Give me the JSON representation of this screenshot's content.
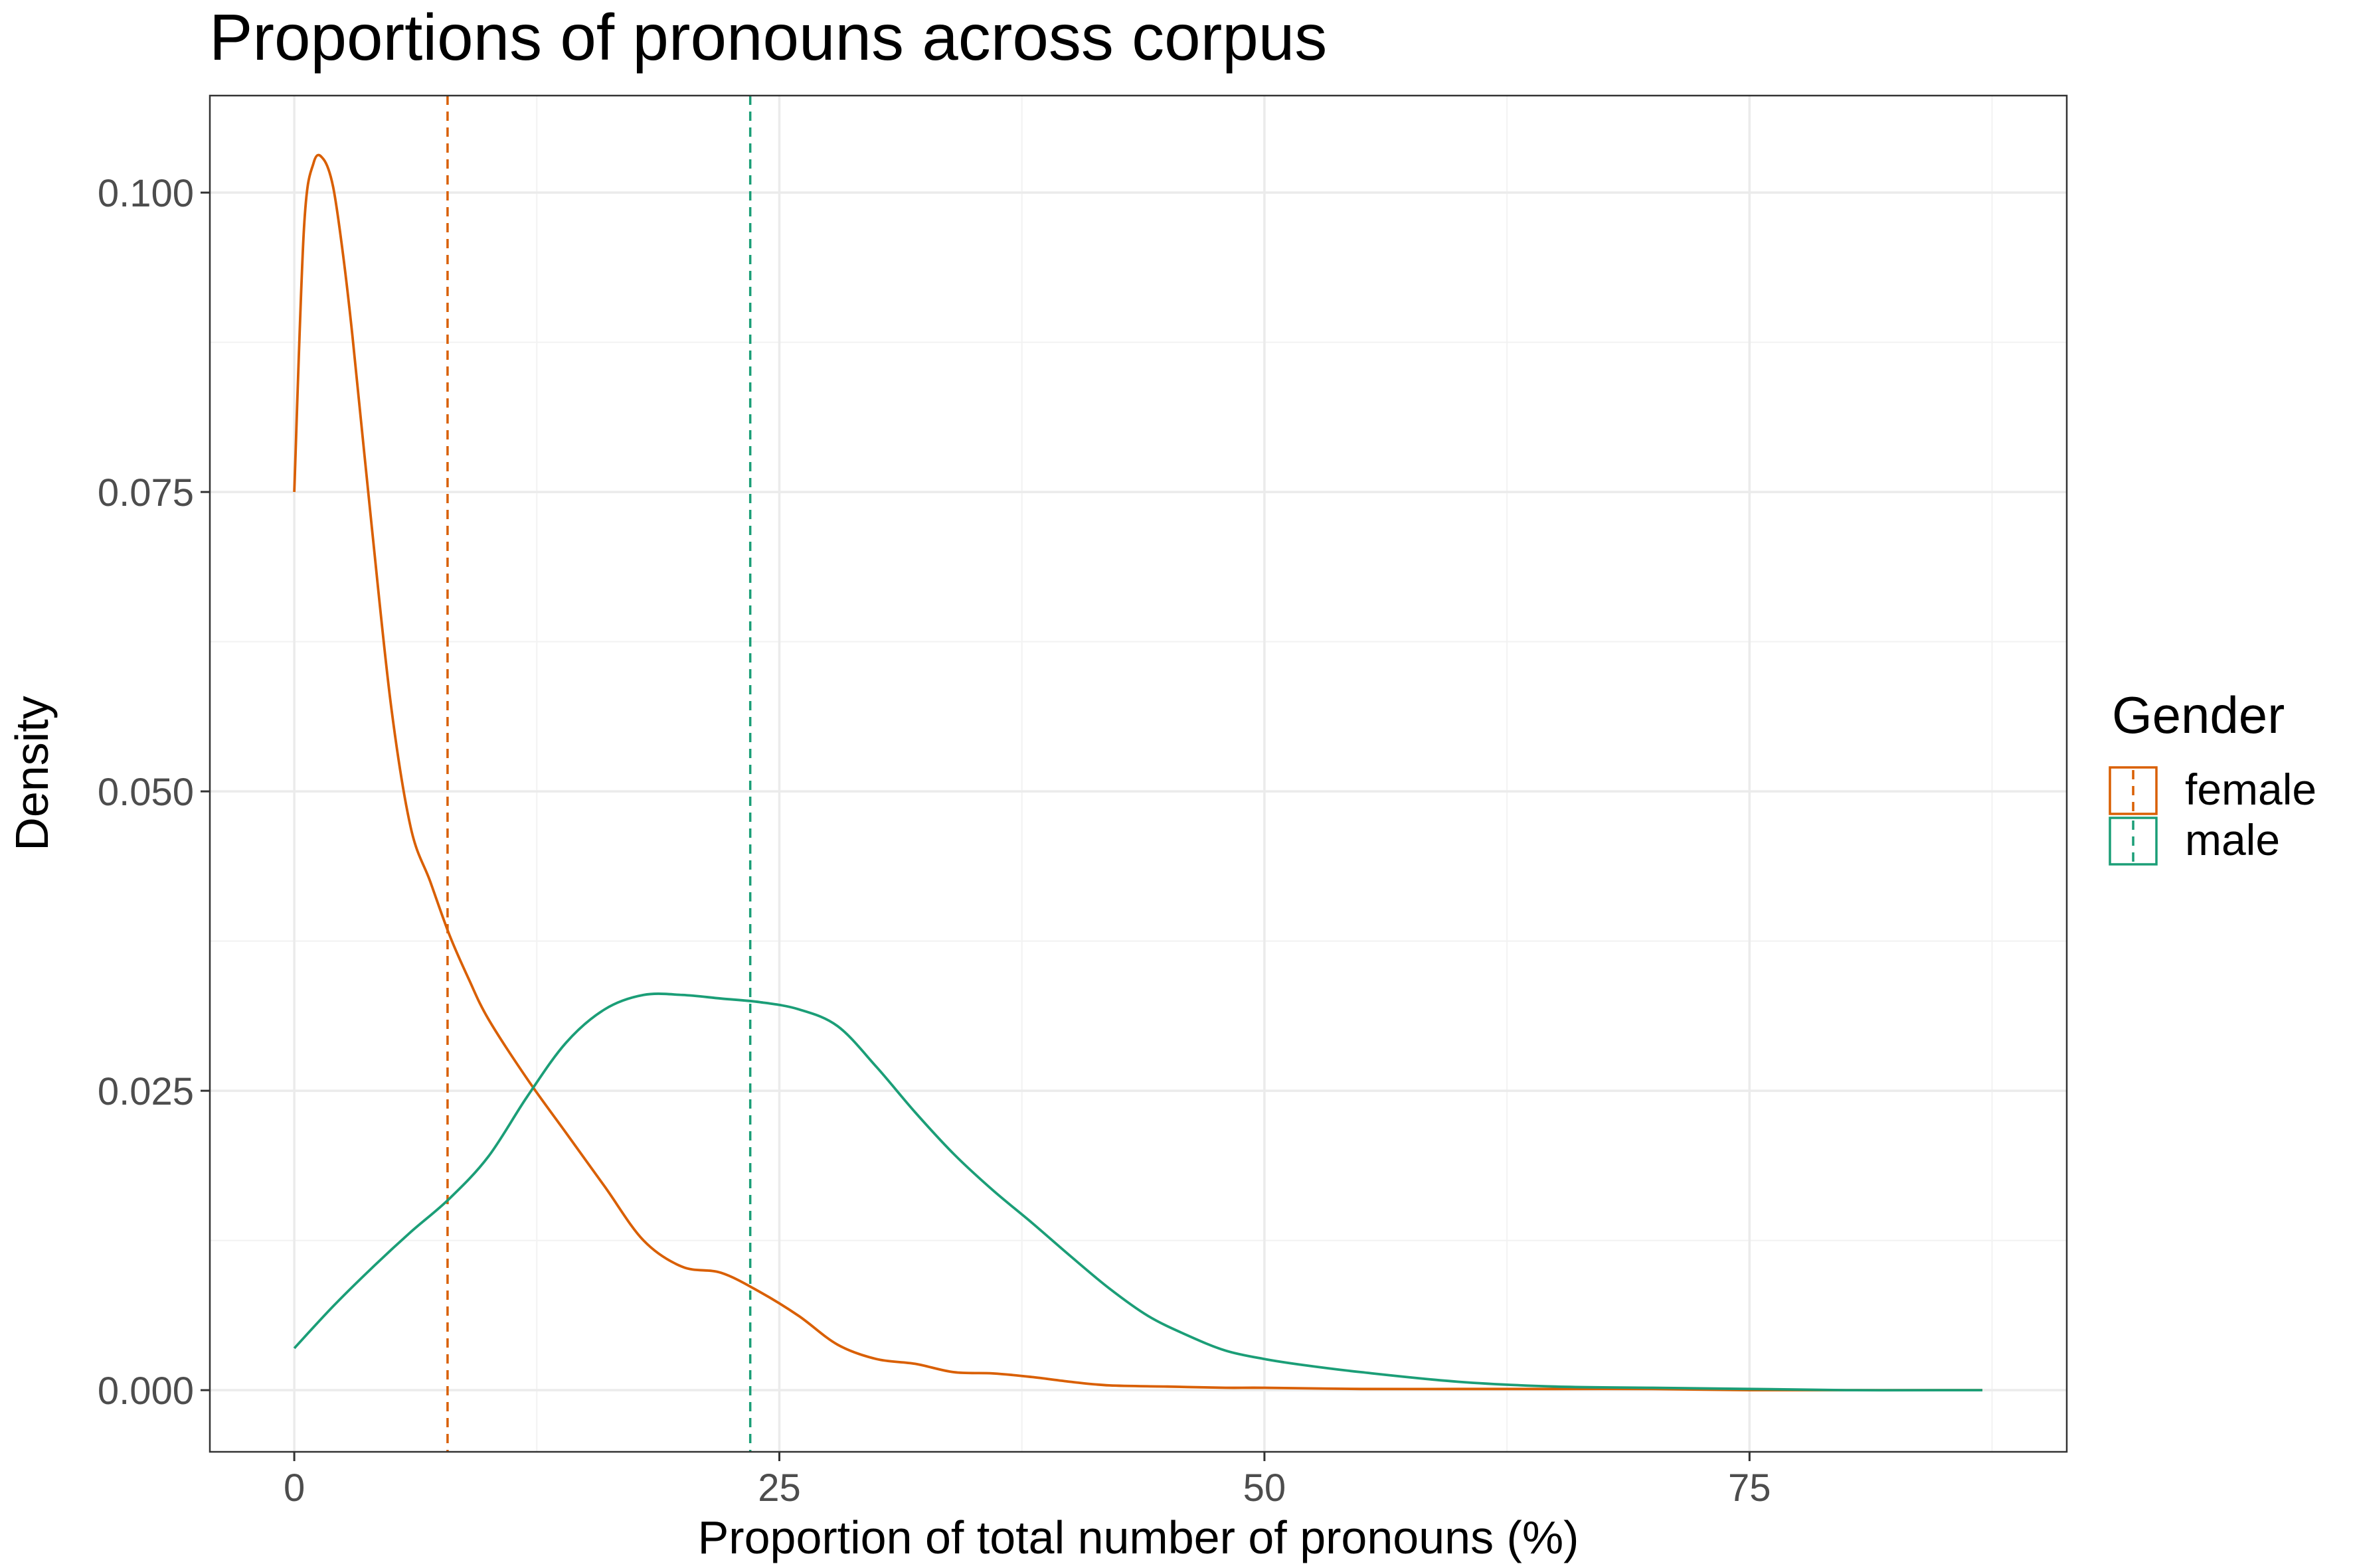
{
  "chart_data": {
    "type": "line",
    "title": "Proportions of pronouns across corpus",
    "xlabel": "Proportion of total number of pronouns (%)",
    "ylabel": "Density",
    "xlim": [
      -4.35,
      91.35
    ],
    "ylim": [
      -0.00515,
      0.1081
    ],
    "x_ticks": [
      0,
      25,
      50,
      75
    ],
    "x_tick_labels": [
      "0",
      "25",
      "50",
      "75"
    ],
    "y_ticks": [
      0,
      0.025,
      0.05,
      0.075,
      0.1
    ],
    "y_tick_labels": [
      "0.000",
      "0.025",
      "0.050",
      "0.075",
      "0.100"
    ],
    "grid": true,
    "legend": {
      "title": "Gender",
      "placement": "right"
    },
    "series": [
      {
        "name": "female",
        "color": "#D95F02",
        "mean_line": 7.9,
        "x": [
          0,
          0.5,
          1,
          1.5,
          2,
          2.5,
          3,
          4,
          5,
          6,
          7,
          8,
          9,
          10,
          12,
          14,
          16,
          18,
          20,
          22,
          24,
          26,
          28,
          30,
          32,
          34,
          36,
          38,
          40,
          42,
          45,
          48,
          50,
          55,
          60,
          65,
          70,
          75,
          80,
          85,
          87
        ],
        "y": [
          0.075,
          0.097,
          0.1025,
          0.1028,
          0.1005,
          0.095,
          0.088,
          0.072,
          0.057,
          0.047,
          0.0425,
          0.038,
          0.0343,
          0.031,
          0.026,
          0.0215,
          0.017,
          0.0125,
          0.0103,
          0.0098,
          0.0082,
          0.0062,
          0.0038,
          0.0026,
          0.0022,
          0.0015,
          0.0014,
          0.0011,
          0.0007,
          0.0004,
          0.0003,
          0.0002,
          0.0002,
          0.0001,
          0.0001,
          0.0001,
          0.0001,
          0.0,
          0.0,
          0.0,
          0.0
        ]
      },
      {
        "name": "male",
        "color": "#1B9E77",
        "mean_line": 23.5,
        "x": [
          0,
          2,
          4,
          6,
          8,
          10,
          12,
          14,
          16,
          18,
          20,
          22,
          24,
          26,
          28,
          30,
          32,
          34,
          36,
          38,
          40,
          42,
          44,
          46,
          48,
          50,
          52,
          55,
          60,
          65,
          70,
          75,
          80,
          85,
          87
        ],
        "y": [
          0.0035,
          0.007,
          0.0102,
          0.0132,
          0.016,
          0.0195,
          0.0245,
          0.029,
          0.0318,
          0.033,
          0.033,
          0.0327,
          0.0324,
          0.0318,
          0.0304,
          0.027,
          0.0232,
          0.0197,
          0.0167,
          0.014,
          0.0112,
          0.0085,
          0.0062,
          0.0046,
          0.0033,
          0.0026,
          0.0021,
          0.0015,
          0.0007,
          0.0003,
          0.0002,
          0.0001,
          0.0,
          0.0,
          0.0
        ]
      }
    ]
  }
}
